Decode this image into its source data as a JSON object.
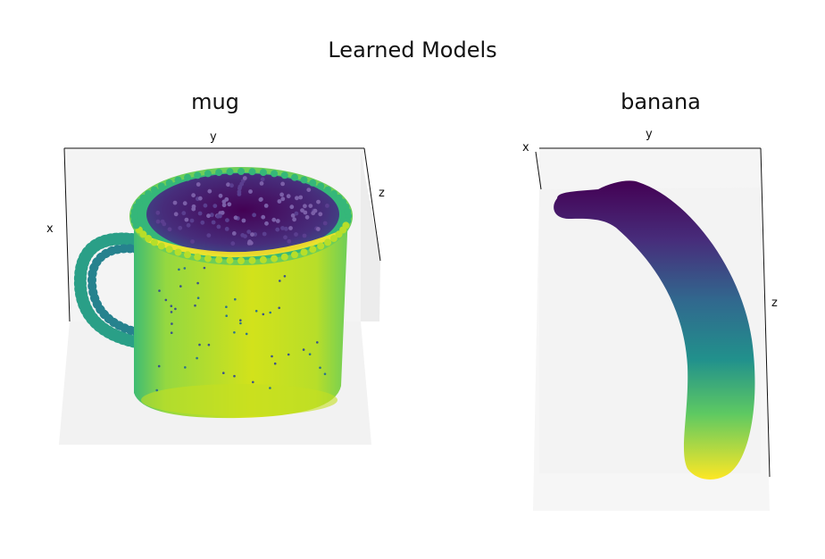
{
  "chart_data": {
    "type": "scatter",
    "title": "Learned Models",
    "subplots": [
      {
        "title": "mug",
        "projection": "3d",
        "axis_labels": {
          "x": "x",
          "y": "y",
          "z": "z"
        },
        "colormap": "viridis",
        "shape": "mug"
      },
      {
        "title": "banana",
        "projection": "3d",
        "axis_labels": {
          "x": "x",
          "y": "y",
          "z": "z"
        },
        "colormap": "viridis",
        "shape": "banana"
      }
    ]
  }
}
